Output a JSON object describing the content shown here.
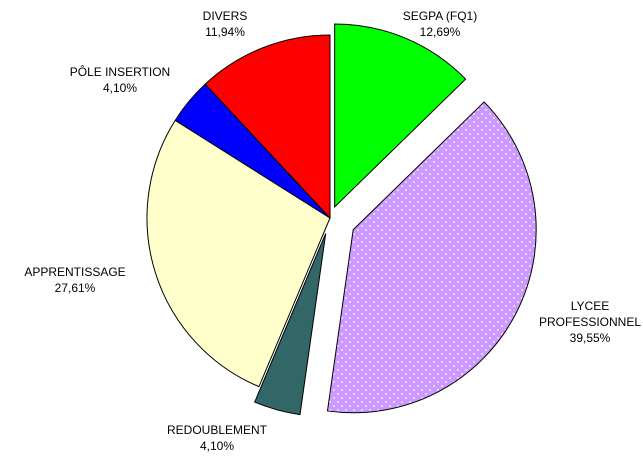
{
  "chart_data": {
    "type": "pie",
    "categories": [
      "SEGPA (FQ1)",
      "LYCEE PROFESSIONNEL",
      "REDOUBLEMENT",
      "APPRENTISSAGE",
      "PÔLE INSERTION",
      "DIVERS"
    ],
    "values": [
      12.69,
      39.55,
      4.1,
      27.61,
      4.1,
      11.94
    ],
    "value_labels": [
      "12,69%",
      "39,55%",
      "4,10%",
      "27,61%",
      "4,10%",
      "11,94%"
    ],
    "colors": [
      "#00ff00",
      "#cc99ff",
      "#336666",
      "#ffffcc",
      "#0000ff",
      "#ff0000"
    ]
  }
}
